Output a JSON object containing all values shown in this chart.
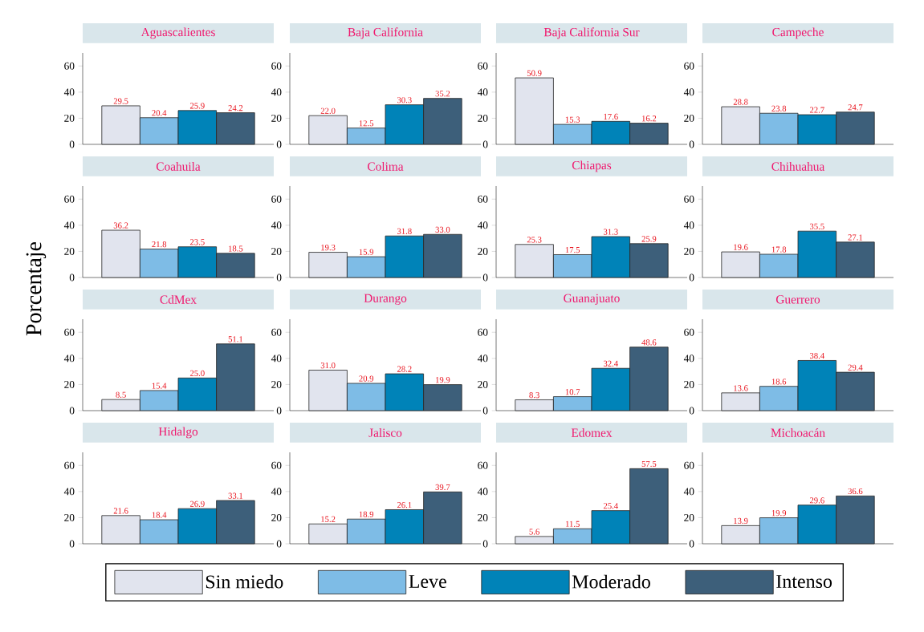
{
  "chart_data": [
    {
      "type": "bar",
      "title": "Aguascalientes",
      "categories": [
        null
      ],
      "ylim": [
        0,
        70
      ],
      "yticks": [
        0,
        20,
        40,
        60
      ],
      "series": [
        {
          "color": "#e1e4ee",
          "values": [
            29.5
          ],
          "value_labels": [
            "29.5"
          ]
        },
        {
          "color": "#7ebce6",
          "values": [
            20.4
          ],
          "value_labels": [
            "20.4"
          ]
        },
        {
          "color": "#0083b8",
          "values": [
            25.9
          ],
          "value_labels": [
            "25.9"
          ]
        },
        {
          "color": "#3d5f7a",
          "values": [
            24.2
          ],
          "value_labels": [
            "24.2"
          ]
        }
      ]
    },
    {
      "type": "bar",
      "title": "Baja California",
      "categories": [
        null
      ],
      "ylim": [
        0,
        70
      ],
      "yticks": [
        0,
        20,
        40,
        60
      ],
      "series": [
        {
          "color": "#e1e4ee",
          "values": [
            22.0
          ],
          "value_labels": [
            "22.0"
          ]
        },
        {
          "color": "#7ebce6",
          "values": [
            12.5
          ],
          "value_labels": [
            "12.5"
          ]
        },
        {
          "color": "#0083b8",
          "values": [
            30.3
          ],
          "value_labels": [
            "30.3"
          ]
        },
        {
          "color": "#3d5f7a",
          "values": [
            35.2
          ],
          "value_labels": [
            "35.2"
          ]
        }
      ]
    },
    {
      "type": "bar",
      "title": "Baja California Sur",
      "categories": [
        null
      ],
      "ylim": [
        0,
        70
      ],
      "yticks": [
        0,
        20,
        40,
        60
      ],
      "series": [
        {
          "color": "#e1e4ee",
          "values": [
            50.9
          ],
          "value_labels": [
            "50.9"
          ]
        },
        {
          "color": "#7ebce6",
          "values": [
            15.3
          ],
          "value_labels": [
            "15.3"
          ]
        },
        {
          "color": "#0083b8",
          "values": [
            17.6
          ],
          "value_labels": [
            "17.6"
          ]
        },
        {
          "color": "#3d5f7a",
          "values": [
            16.2
          ],
          "value_labels": [
            "16.2"
          ]
        }
      ]
    },
    {
      "type": "bar",
      "title": "Campeche",
      "categories": [
        null
      ],
      "ylim": [
        0,
        70
      ],
      "yticks": [
        0,
        20,
        40,
        60
      ],
      "series": [
        {
          "color": "#e1e4ee",
          "values": [
            28.8
          ],
          "value_labels": [
            "28.8"
          ]
        },
        {
          "color": "#7ebce6",
          "values": [
            23.8
          ],
          "value_labels": [
            "23.8"
          ]
        },
        {
          "color": "#0083b8",
          "values": [
            22.7
          ],
          "value_labels": [
            "22.7"
          ]
        },
        {
          "color": "#3d5f7a",
          "values": [
            24.7
          ],
          "value_labels": [
            "24.7"
          ]
        }
      ]
    },
    {
      "type": "bar",
      "title": "Coahuila",
      "categories": [
        null
      ],
      "ylim": [
        0,
        70
      ],
      "yticks": [
        0,
        20,
        40,
        60
      ],
      "series": [
        {
          "color": "#e1e4ee",
          "values": [
            36.2
          ],
          "value_labels": [
            "36.2"
          ]
        },
        {
          "color": "#7ebce6",
          "values": [
            21.8
          ],
          "value_labels": [
            "21.8"
          ]
        },
        {
          "color": "#0083b8",
          "values": [
            23.5
          ],
          "value_labels": [
            "23.5"
          ]
        },
        {
          "color": "#3d5f7a",
          "values": [
            18.5
          ],
          "value_labels": [
            "18.5"
          ]
        }
      ]
    },
    {
      "type": "bar",
      "title": "Colima",
      "categories": [
        null
      ],
      "ylim": [
        0,
        70
      ],
      "yticks": [
        0,
        20,
        40,
        60
      ],
      "series": [
        {
          "color": "#e1e4ee",
          "values": [
            19.3
          ],
          "value_labels": [
            "19.3"
          ]
        },
        {
          "color": "#7ebce6",
          "values": [
            15.9
          ],
          "value_labels": [
            "15.9"
          ]
        },
        {
          "color": "#0083b8",
          "values": [
            31.8
          ],
          "value_labels": [
            "31.8"
          ]
        },
        {
          "color": "#3d5f7a",
          "values": [
            33.0
          ],
          "value_labels": [
            "33.0"
          ]
        }
      ]
    },
    {
      "type": "bar",
      "title": "Chiapas",
      "categories": [
        null
      ],
      "ylim": [
        0,
        70
      ],
      "yticks": [
        0,
        20,
        40,
        60
      ],
      "series": [
        {
          "color": "#e1e4ee",
          "values": [
            25.3
          ],
          "value_labels": [
            "25.3"
          ]
        },
        {
          "color": "#7ebce6",
          "values": [
            17.5
          ],
          "value_labels": [
            "17.5"
          ]
        },
        {
          "color": "#0083b8",
          "values": [
            31.3
          ],
          "value_labels": [
            "31.3"
          ]
        },
        {
          "color": "#3d5f7a",
          "values": [
            25.9
          ],
          "value_labels": [
            "25.9"
          ]
        }
      ]
    },
    {
      "type": "bar",
      "title": "Chihuahua",
      "categories": [
        null
      ],
      "ylim": [
        0,
        70
      ],
      "yticks": [
        0,
        20,
        40,
        60
      ],
      "series": [
        {
          "color": "#e1e4ee",
          "values": [
            19.6
          ],
          "value_labels": [
            "19.6"
          ]
        },
        {
          "color": "#7ebce6",
          "values": [
            17.8
          ],
          "value_labels": [
            "17.8"
          ]
        },
        {
          "color": "#0083b8",
          "values": [
            35.5
          ],
          "value_labels": [
            "35.5"
          ]
        },
        {
          "color": "#3d5f7a",
          "values": [
            27.1
          ],
          "value_labels": [
            "27.1"
          ]
        }
      ]
    },
    {
      "type": "bar",
      "title": "CdMex",
      "ylabel": "Porcentaje",
      "categories": [
        null
      ],
      "ylim": [
        0,
        70
      ],
      "yticks": [
        0,
        20,
        40,
        60
      ],
      "series": [
        {
          "color": "#e1e4ee",
          "values": [
            8.5
          ],
          "value_labels": [
            "8.5"
          ]
        },
        {
          "color": "#7ebce6",
          "values": [
            15.4
          ],
          "value_labels": [
            "15.4"
          ]
        },
        {
          "color": "#0083b8",
          "values": [
            25.0
          ],
          "value_labels": [
            "25.0"
          ]
        },
        {
          "color": "#3d5f7a",
          "values": [
            51.1
          ],
          "value_labels": [
            "51.1"
          ]
        }
      ]
    },
    {
      "type": "bar",
      "title": "Durango",
      "categories": [
        null
      ],
      "ylim": [
        0,
        70
      ],
      "yticks": [
        0,
        20,
        40,
        60
      ],
      "series": [
        {
          "color": "#e1e4ee",
          "values": [
            31.0
          ],
          "value_labels": [
            "31.0"
          ]
        },
        {
          "color": "#7ebce6",
          "values": [
            20.9
          ],
          "value_labels": [
            "20.9"
          ]
        },
        {
          "color": "#0083b8",
          "values": [
            28.2
          ],
          "value_labels": [
            "28.2"
          ]
        },
        {
          "color": "#3d5f7a",
          "values": [
            19.9
          ],
          "value_labels": [
            "19.9"
          ]
        }
      ]
    },
    {
      "type": "bar",
      "title": "Guanajuato",
      "categories": [
        null
      ],
      "ylim": [
        0,
        70
      ],
      "yticks": [
        0,
        20,
        40,
        60
      ],
      "series": [
        {
          "color": "#e1e4ee",
          "values": [
            8.3
          ],
          "value_labels": [
            "8.3"
          ]
        },
        {
          "color": "#7ebce6",
          "values": [
            10.7
          ],
          "value_labels": [
            "10.7"
          ]
        },
        {
          "color": "#0083b8",
          "values": [
            32.4
          ],
          "value_labels": [
            "32.4"
          ]
        },
        {
          "color": "#3d5f7a",
          "values": [
            48.6
          ],
          "value_labels": [
            "48.6"
          ]
        }
      ]
    },
    {
      "type": "bar",
      "title": "Guerrero",
      "categories": [
        null
      ],
      "ylim": [
        0,
        70
      ],
      "yticks": [
        0,
        20,
        40,
        60
      ],
      "series": [
        {
          "color": "#e1e4ee",
          "values": [
            13.6
          ],
          "value_labels": [
            "13.6"
          ]
        },
        {
          "color": "#7ebce6",
          "values": [
            18.6
          ],
          "value_labels": [
            "18.6"
          ]
        },
        {
          "color": "#0083b8",
          "values": [
            38.4
          ],
          "value_labels": [
            "38.4"
          ]
        },
        {
          "color": "#3d5f7a",
          "values": [
            29.4
          ],
          "value_labels": [
            "29.4"
          ]
        }
      ]
    },
    {
      "type": "bar",
      "title": "Hidalgo",
      "categories": [
        null
      ],
      "ylim": [
        0,
        70
      ],
      "yticks": [
        0,
        20,
        40,
        60
      ],
      "series": [
        {
          "color": "#e1e4ee",
          "values": [
            21.6
          ],
          "value_labels": [
            "21.6"
          ]
        },
        {
          "color": "#7ebce6",
          "values": [
            18.4
          ],
          "value_labels": [
            "18.4"
          ]
        },
        {
          "color": "#0083b8",
          "values": [
            26.9
          ],
          "value_labels": [
            "26.9"
          ]
        },
        {
          "color": "#3d5f7a",
          "values": [
            33.1
          ],
          "value_labels": [
            "33.1"
          ]
        }
      ]
    },
    {
      "type": "bar",
      "title": "Jalisco",
      "categories": [
        null
      ],
      "ylim": [
        0,
        70
      ],
      "yticks": [
        0,
        20,
        40,
        60
      ],
      "series": [
        {
          "color": "#e1e4ee",
          "values": [
            15.2
          ],
          "value_labels": [
            "15.2"
          ]
        },
        {
          "color": "#7ebce6",
          "values": [
            18.9
          ],
          "value_labels": [
            "18.9"
          ]
        },
        {
          "color": "#0083b8",
          "values": [
            26.1
          ],
          "value_labels": [
            "26.1"
          ]
        },
        {
          "color": "#3d5f7a",
          "values": [
            39.7
          ],
          "value_labels": [
            "39.7"
          ]
        }
      ]
    },
    {
      "type": "bar",
      "title": "Edomex",
      "categories": [
        null
      ],
      "ylim": [
        0,
        70
      ],
      "yticks": [
        0,
        20,
        40,
        60
      ],
      "series": [
        {
          "color": "#e1e4ee",
          "values": [
            5.6
          ],
          "value_labels": [
            "5.6"
          ]
        },
        {
          "color": "#7ebce6",
          "values": [
            11.5
          ],
          "value_labels": [
            "11.5"
          ]
        },
        {
          "color": "#0083b8",
          "values": [
            25.4
          ],
          "value_labels": [
            "25.4"
          ]
        },
        {
          "color": "#3d5f7a",
          "values": [
            57.5
          ],
          "value_labels": [
            "57.5"
          ]
        }
      ]
    },
    {
      "type": "bar",
      "title": "Michoacán",
      "legend": "bottom",
      "categories": [
        null
      ],
      "ylim": [
        0,
        70
      ],
      "yticks": [
        0,
        20,
        40,
        60
      ],
      "series": [
        {
          "name": "Sin miedo",
          "color": "#e1e4ee",
          "values": [
            13.9
          ],
          "value_labels": [
            "13.9"
          ]
        },
        {
          "name": "Leve",
          "color": "#7ebce6",
          "values": [
            19.9
          ],
          "value_labels": [
            "19.9"
          ]
        },
        {
          "name": "Moderado",
          "color": "#0083b8",
          "values": [
            29.6
          ],
          "value_labels": [
            "29.6"
          ]
        },
        {
          "name": "Intenso",
          "color": "#3d5f7a",
          "values": [
            36.6
          ],
          "value_labels": [
            "36.6"
          ]
        }
      ]
    }
  ]
}
